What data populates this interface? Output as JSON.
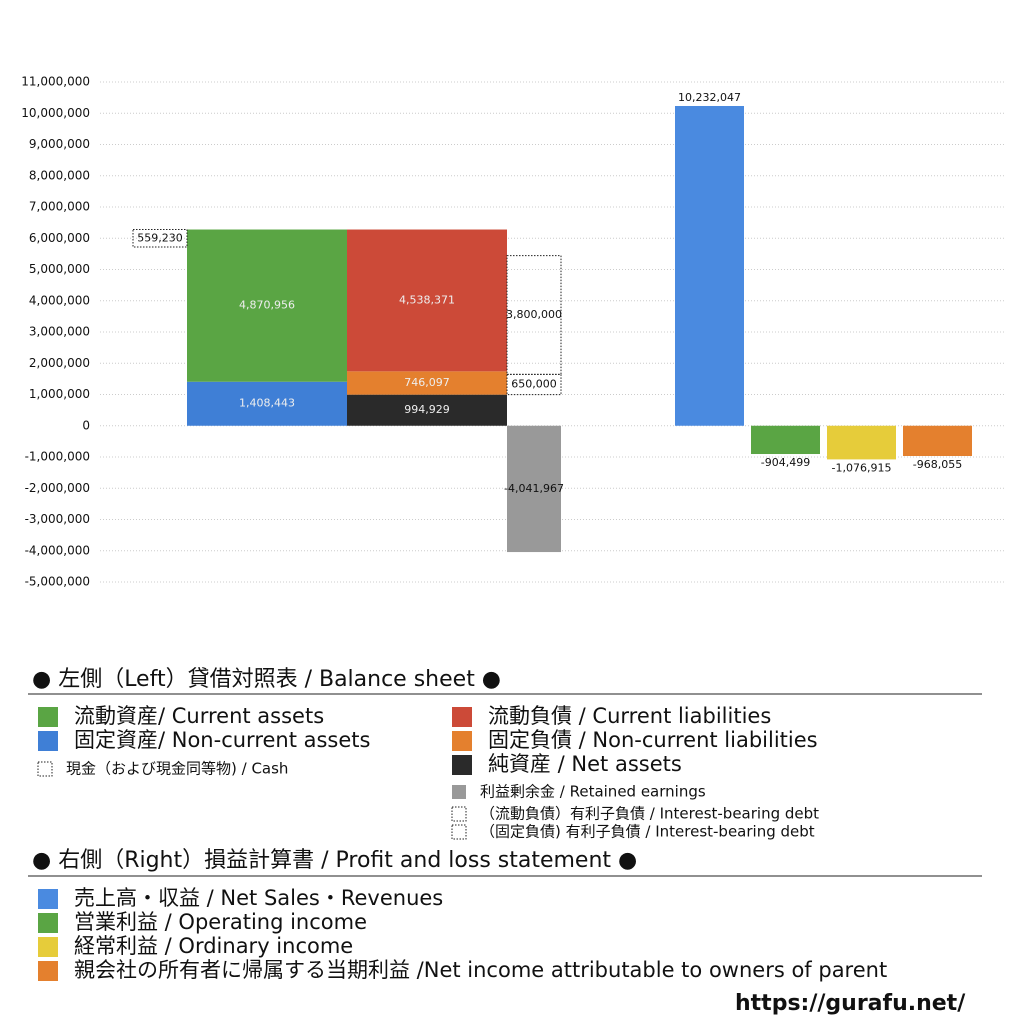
{
  "chart_data": {
    "type": "bar",
    "ylim": [
      -5000000,
      11000000
    ],
    "yticks": [
      {
        "value": -5000000,
        "label": "-5,000,000"
      },
      {
        "value": -4000000,
        "label": "-4,000,000"
      },
      {
        "value": -3000000,
        "label": "-3,000,000"
      },
      {
        "value": -2000000,
        "label": "-2,000,000"
      },
      {
        "value": -1000000,
        "label": "-1,000,000"
      },
      0,
      {
        "value": 1000000,
        "label": "1,000,000"
      },
      {
        "value": 2000000,
        "label": "2,000,000"
      },
      {
        "value": 3000000,
        "label": "3,000,000"
      },
      {
        "value": 4000000,
        "label": "4,000,000"
      },
      {
        "value": 5000000,
        "label": "5,000,000"
      },
      {
        "value": 6000000,
        "label": "6,000,000"
      },
      {
        "value": 7000000,
        "label": "7,000,000"
      },
      {
        "value": 8000000,
        "label": "8,000,000"
      },
      {
        "value": 9000000,
        "label": "9,000,000"
      },
      {
        "value": 10000000,
        "label": "10,000,000"
      },
      {
        "value": 11000000,
        "label": "11,000,000"
      }
    ],
    "grid": true,
    "balance_sheet": {
      "title": "● 左側（Left）貸借対照表 / Balance sheet ●",
      "assets": [
        {
          "name": "固定資産/ Non-current assets",
          "color": "#3f7fd6",
          "value": 1408443,
          "value_label": "1,408,443"
        },
        {
          "name": "流動資産/ Current assets",
          "color": "#5aa544",
          "value": 4870956,
          "value_label": "4,870,956"
        }
      ],
      "cash": {
        "name": "現金（および現金同等物) / Cash",
        "value": 559230,
        "value_label": "559,230"
      },
      "liabilities": [
        {
          "name": "純資産 / Net assets",
          "color": "#2a2a2a",
          "value": 994929,
          "value_label": "994,929"
        },
        {
          "name": "固定負債 / Non-current liabilities",
          "color": "#e4802e",
          "value": 746097,
          "value_label": "746,097"
        },
        {
          "name": "流動負債 /  Current liabilities",
          "color": "#cc4a38",
          "value": 4538371,
          "value_label": "4,538,371"
        }
      ],
      "interest_bearing_debt": [
        {
          "name": "（固定負債) 有利子負債 / Interest-bearing debt",
          "value": 650000,
          "value_label": "650,000"
        },
        {
          "name": "（流動負債）有利子負債 / Interest-bearing debt",
          "value": 3800000,
          "value_label": "3,800,000"
        }
      ],
      "retained_earnings": {
        "name": "利益剰余金 / Retained earnings",
        "color": "#999999",
        "value": -4041967,
        "value_label": "-4,041,967"
      }
    },
    "profit_loss": {
      "title": "● 右側（Right）損益計算書 / Profit and loss statement ●",
      "series": [
        {
          "name": "売上高・収益 / Net Sales・Revenues",
          "color": "#4a8ae0",
          "value": 10232047,
          "value_label": "10,232,047"
        },
        {
          "name": "営業利益 / Operating income",
          "color": "#5aa544",
          "value": -904499,
          "value_label": "-904,499"
        },
        {
          "name": "経常利益 / Ordinary income",
          "color": "#e6cc3a",
          "value": -1076915,
          "value_label": "-1,076,915"
        },
        {
          "name": "親会社の所有者に帰属する当期利益 /Net income attributable to owners of parent",
          "color": "#e4802e",
          "value": -968055,
          "value_label": "-968,055"
        }
      ]
    },
    "source": "https://gurafu.net/"
  }
}
